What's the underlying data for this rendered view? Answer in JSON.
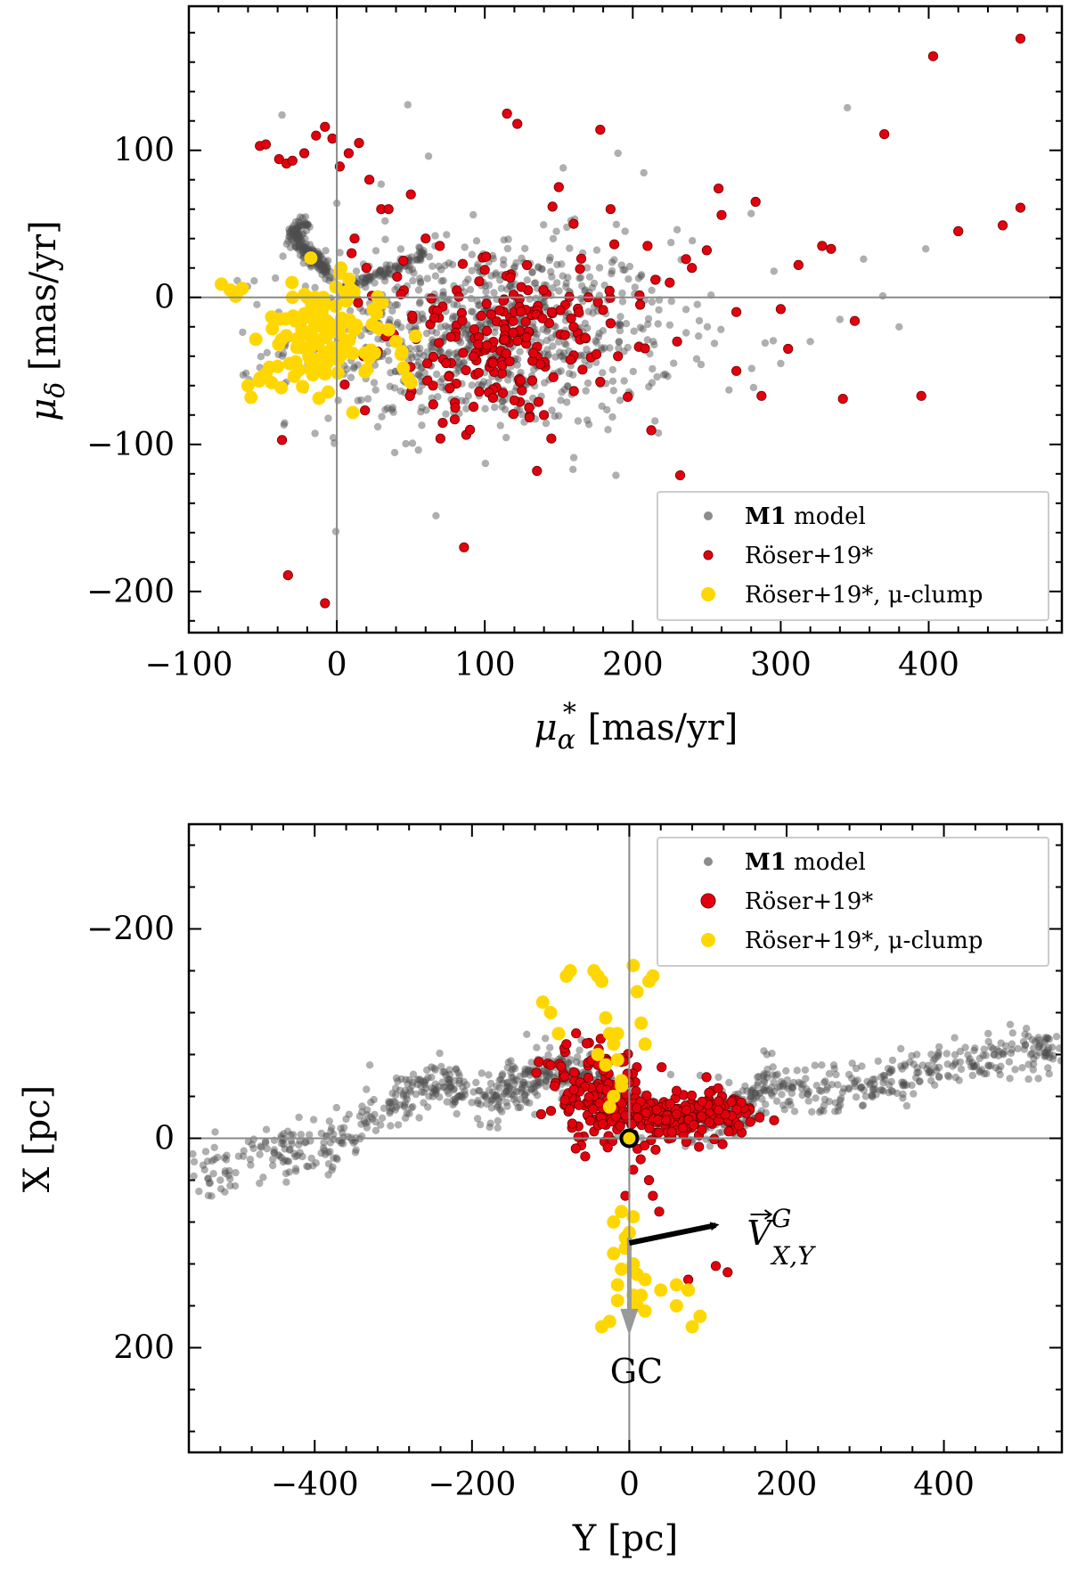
{
  "chart_data": [
    {
      "type": "scatter",
      "title": "",
      "xlabel": {
        "symbol": "μ",
        "sub": "α",
        "sup": "*",
        "unit": " [mas/yr]"
      },
      "ylabel": {
        "symbol": "μ",
        "sub": "δ",
        "unit": " [mas/yr]"
      },
      "xlim": [
        -100,
        490
      ],
      "ylim": [
        -228,
        198
      ],
      "x_ticks": [
        -100,
        0,
        100,
        200,
        300,
        400
      ],
      "y_ticks": [
        -200,
        -100,
        0,
        100
      ],
      "x_tick_labels": [
        "−100",
        "0",
        "100",
        "200",
        "300",
        "400"
      ],
      "y_tick_labels": [
        "−200",
        "−100",
        "0",
        "100"
      ],
      "reference_lines": {
        "x": 0,
        "y": 0
      },
      "legend": {
        "placement": "lower-right",
        "entries": [
          {
            "bold": "M1",
            "text": " model",
            "color": "#8c8c8c"
          },
          {
            "bold": "",
            "text": "Röser+19*",
            "color": "#e3000e"
          },
          {
            "bold": "",
            "text": "Röser+19*, μ-clump",
            "color": "#ffd700"
          }
        ]
      },
      "series": [
        {
          "name": "M1 model",
          "color": "#555555",
          "cloud": {
            "cx": 100,
            "cy": -25,
            "sx": 65,
            "sy": 32,
            "n": 900
          },
          "arc": {
            "count": 180,
            "points": [
              [
                -22,
                52
              ],
              [
                -28,
                45
              ],
              [
                -25,
                36
              ],
              [
                -18,
                30
              ],
              [
                -12,
                24
              ],
              [
                -6,
                16
              ]
            ]
          },
          "streak": {
            "count": 90,
            "from": [
              5,
              5
            ],
            "to": [
              60,
              30
            ]
          },
          "x": [
            -37,
            48,
            345,
            398,
            190,
            62,
            30,
            153,
            280,
            230,
            312,
            369,
            340,
            320,
            265,
            380,
            356,
            300,
            0,
            215
          ],
          "y": [
            124,
            131,
            129,
            33,
            98,
            96,
            77,
            88,
            57,
            46,
            22,
            1,
            -15,
            -30,
            -63,
            -20,
            26,
            -45,
            64,
            -84
          ]
        },
        {
          "name": "Röser+19*",
          "color": "#e3000e",
          "cloud": {
            "cx": 112,
            "cy": -28,
            "sx": 40,
            "sy": 28,
            "n": 200
          },
          "x": [
            -52,
            -48,
            -39,
            -34,
            -30,
            -22,
            -14,
            -8,
            -3,
            2,
            8,
            15,
            22,
            30,
            12,
            115,
            122,
            178,
            258,
            260,
            250,
            236,
            403,
            462,
            370,
            283,
            328,
            334,
            312,
            420,
            450,
            462,
            350,
            287,
            395,
            342,
            232,
            86,
            -33,
            -8,
            -37,
            70,
            145,
            230,
            160,
            205,
            170,
            190,
            185,
            160,
            150,
            210,
            225,
            240,
            270,
            300,
            270,
            305,
            35,
            50,
            60,
            45,
            10,
            20,
            65,
            80,
            90,
            140,
            130,
            120
          ],
          "y": [
            103,
            104,
            94,
            91,
            93,
            98,
            110,
            116,
            108,
            89,
            98,
            105,
            80,
            60,
            40,
            125,
            118,
            114,
            74,
            56,
            32,
            26,
            164,
            176,
            111,
            65,
            35,
            33,
            22,
            45,
            49,
            61,
            -16,
            -67,
            -67,
            -69,
            -121,
            -170,
            -189,
            -208,
            -97,
            -96,
            -96,
            -30,
            -20,
            -5,
            0,
            -40,
            60,
            50,
            75,
            35,
            10,
            20,
            -10,
            -8,
            -50,
            -35,
            60,
            70,
            40,
            25,
            30,
            20,
            -60,
            -75,
            -90,
            -80,
            -75,
            -70
          ]
        },
        {
          "name": "Röser+19*, μ-clump",
          "color": "#ffd700",
          "cloud": {
            "cx": -5,
            "cy": -25,
            "sx": 22,
            "sy": 18,
            "n": 110
          },
          "x": [
            -78,
            -72,
            -68,
            -64,
            -58,
            -52,
            -48,
            -40,
            -30,
            -20,
            -15,
            40,
            44,
            48,
            50,
            45,
            35,
            -32,
            -44,
            -60
          ],
          "y": [
            9,
            5,
            2,
            6,
            -68,
            -55,
            -52,
            -47,
            0,
            0,
            -20,
            -30,
            -37,
            -55,
            -58,
            -48,
            -22,
            -45,
            -58,
            -60
          ]
        }
      ]
    },
    {
      "type": "scatter",
      "title": "",
      "xlabel": {
        "text": "Y [pc]"
      },
      "ylabel": {
        "text": "X [pc]"
      },
      "xlim": [
        -560,
        550
      ],
      "ylim": [
        300,
        -300
      ],
      "y_inverted": true,
      "x_ticks": [
        -400,
        -200,
        0,
        200,
        400
      ],
      "y_ticks": [
        -200,
        0,
        200
      ],
      "x_tick_labels": [
        "−400",
        "−200",
        "0",
        "200",
        "400"
      ],
      "y_tick_labels": [
        "−200",
        "0",
        "200"
      ],
      "reference_lines": {
        "x": 0,
        "y": 0
      },
      "legend": {
        "placement": "upper-right",
        "entries": [
          {
            "bold": "M1",
            "text": " model",
            "color": "#8c8c8c"
          },
          {
            "bold": "",
            "text": "Röser+19*",
            "color": "#e3000e"
          },
          {
            "bold": "",
            "text": "Röser+19*, μ-clump",
            "color": "#ffd700"
          }
        ]
      },
      "annotations": {
        "sun": {
          "x": 0,
          "y": 0
        },
        "velocity_arrow": {
          "from": [
            0,
            100
          ],
          "to": [
            110,
            83
          ],
          "label_main": "V",
          "label_sup": "G",
          "label_sub": "X,Y"
        },
        "gc_arrow": {
          "from": [
            0,
            95
          ],
          "to": [
            0,
            185
          ],
          "label": "GC"
        }
      },
      "series": [
        {
          "name": "M1 model",
          "color": "#555555",
          "ridge": {
            "count": 1100,
            "spread_y": 12,
            "points": [
              [
                -555,
                30
              ],
              [
                -450,
                15
              ],
              [
                -380,
                5
              ],
              [
                -300,
                -35
              ],
              [
                -240,
                -55
              ],
              [
                -180,
                -35
              ],
              [
                -140,
                -50
              ],
              [
                -100,
                -65
              ],
              [
                -60,
                -65
              ],
              [
                -20,
                -45
              ],
              [
                30,
                -20
              ],
              [
                100,
                -15
              ],
              [
                140,
                -25
              ],
              [
                180,
                -55
              ],
              [
                240,
                -45
              ],
              [
                320,
                -55
              ],
              [
                400,
                -70
              ],
              [
                480,
                -80
              ],
              [
                550,
                -85
              ]
            ]
          },
          "x": [
            -555,
            -540,
            -520,
            560,
            530,
            175,
            260,
            90,
            -330,
            -420
          ],
          "y": [
            15,
            30,
            40,
            -90,
            -80,
            -80,
            -70,
            -60,
            -70,
            -20
          ]
        },
        {
          "name": "Röser+19*",
          "color": "#e3000e",
          "blobs": [
            {
              "cx": -45,
              "cy": -45,
              "sx": 28,
              "sy": 25,
              "n": 130
            },
            {
              "cx": 40,
              "cy": -20,
              "sx": 35,
              "sy": 14,
              "n": 140
            },
            {
              "cx": 110,
              "cy": -22,
              "sx": 30,
              "sy": 10,
              "n": 70
            }
          ],
          "x": [
            -115,
            -95,
            -80,
            -40,
            5,
            -5,
            25,
            30,
            38,
            75,
            110,
            125,
            -100,
            -20
          ],
          "y": [
            -73,
            -50,
            -90,
            -70,
            30,
            55,
            40,
            55,
            70,
            135,
            122,
            128,
            -70,
            -90
          ]
        },
        {
          "name": "Röser+19*, μ-clump",
          "color": "#ffd700",
          "x": [
            -110,
            -100,
            -90,
            -80,
            -75,
            -45,
            -40,
            -35,
            -30,
            -25,
            -20,
            -15,
            -10,
            5,
            10,
            15,
            20,
            25,
            30,
            -10,
            -20,
            -40,
            -25,
            -30,
            -15,
            -20,
            -10,
            5,
            -5,
            -10,
            -20,
            -15,
            5,
            10,
            20,
            40,
            60,
            75,
            90,
            -5,
            0,
            5,
            10,
            -15,
            -25,
            -35,
            80,
            60,
            20,
            15
          ],
          "y": [
            -130,
            -120,
            -100,
            -155,
            -160,
            -160,
            -155,
            -150,
            -115,
            -100,
            -90,
            -75,
            -55,
            -165,
            -140,
            -110,
            -90,
            -150,
            -155,
            -50,
            -40,
            -80,
            -30,
            -70,
            -100,
            80,
            70,
            75,
            105,
            125,
            110,
            140,
            150,
            160,
            165,
            145,
            140,
            145,
            170,
            95,
            90,
            120,
            130,
            155,
            175,
            180,
            180,
            160,
            135,
            150
          ]
        }
      ]
    }
  ]
}
